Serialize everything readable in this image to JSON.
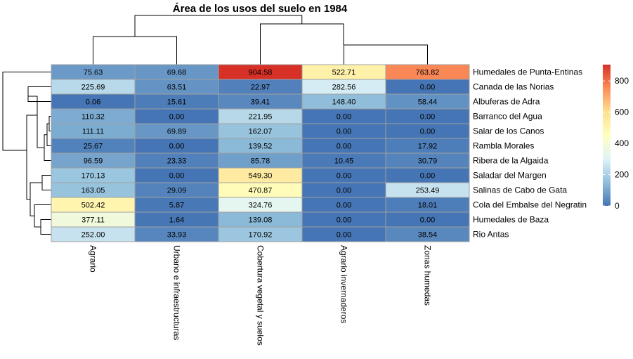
{
  "chart_data": {
    "type": "heatmap",
    "title": "Área de los usos del suelo en 1984",
    "columns": [
      "Agrario",
      "Urbano e infraestructuras",
      "Cobertura vegetal y suelos",
      "Agrario invernaderos",
      "Zonas humedas"
    ],
    "rows": [
      "Humedales de Punta-Entinas",
      "Canada de las Norias",
      "Albuferas de Adra",
      "Barranco del Agua",
      "Salar de los Canos",
      "Rambla Morales",
      "Ribera de la Algaida",
      "Saladar del Margen",
      "Salinas de Cabo de Gata",
      "Cola del Embalse del Negratin",
      "Humedales de Baza",
      "Rio Antas"
    ],
    "values": [
      [
        75.63,
        69.68,
        904.58,
        522.71,
        763.82
      ],
      [
        225.69,
        63.51,
        22.97,
        282.56,
        0.0
      ],
      [
        0.06,
        15.61,
        39.41,
        148.4,
        58.44
      ],
      [
        110.32,
        0.0,
        221.95,
        0.0,
        0.0
      ],
      [
        111.11,
        69.89,
        162.07,
        0.0,
        0.0
      ],
      [
        25.67,
        0.0,
        139.52,
        0.0,
        17.92
      ],
      [
        96.59,
        23.33,
        85.78,
        10.45,
        30.79
      ],
      [
        170.13,
        0.0,
        549.3,
        0.0,
        0.0
      ],
      [
        163.05,
        29.09,
        470.87,
        0.0,
        253.49
      ],
      [
        502.42,
        5.87,
        324.76,
        0.0,
        18.01
      ],
      [
        377.11,
        1.64,
        139.08,
        0.0,
        0.0
      ],
      [
        252.0,
        33.93,
        170.92,
        0.0,
        38.54
      ]
    ],
    "value_labels": [
      [
        "75.63",
        "69.68",
        "904.58",
        "522.71",
        "763.82"
      ],
      [
        "225.69",
        "63.51",
        "22.97",
        "282.56",
        "0.00"
      ],
      [
        "0.06",
        "15.61",
        "39.41",
        "148.40",
        "58.44"
      ],
      [
        "110.32",
        "0.00",
        "221.95",
        "0.00",
        "0.00"
      ],
      [
        "111.11",
        "69.89",
        "162.07",
        "0.00",
        "0.00"
      ],
      [
        "25.67",
        "0.00",
        "139.52",
        "0.00",
        "17.92"
      ],
      [
        "96.59",
        "23.33",
        "85.78",
        "10.45",
        "30.79"
      ],
      [
        "170.13",
        "0.00",
        "549.30",
        "0.00",
        "0.00"
      ],
      [
        "163.05",
        "29.09",
        "470.87",
        "0.00",
        "253.49"
      ],
      [
        "502.42",
        "5.87",
        "324.76",
        "0.00",
        "18.01"
      ],
      [
        "377.11",
        "1.64",
        "139.08",
        "0.00",
        "0.00"
      ],
      [
        "252.00",
        "33.93",
        "170.92",
        "0.00",
        "38.54"
      ]
    ],
    "color_scale": {
      "min": 0,
      "max": 904.58,
      "colors": [
        "#4575b4",
        "#91bfdb",
        "#e0f3f8",
        "#ffffbf",
        "#fee090",
        "#fc8d59",
        "#d73027"
      ]
    },
    "legend": {
      "ticks": [
        0,
        200,
        400,
        600,
        800
      ],
      "placement": "right"
    },
    "dendrogram": {
      "columns": true,
      "rows": true
    },
    "cell_border_color": "#a0a0a0"
  }
}
